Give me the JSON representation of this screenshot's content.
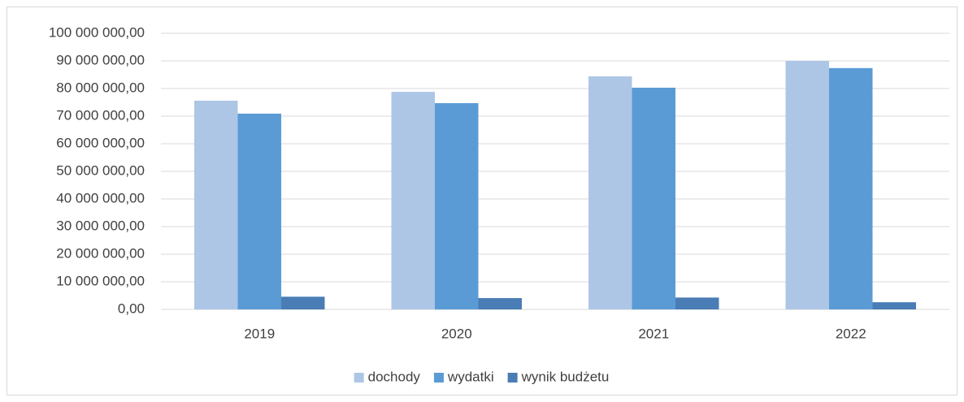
{
  "chart_data": {
    "type": "bar",
    "categories": [
      "2019",
      "2020",
      "2021",
      "2022"
    ],
    "series": [
      {
        "name": "dochody",
        "color": "#adc6e6",
        "values": [
          75600000,
          78800000,
          84400000,
          90000000
        ]
      },
      {
        "name": "wydatki",
        "color": "#5b9bd5",
        "values": [
          70900000,
          74700000,
          80300000,
          87400000
        ]
      },
      {
        "name": "wynik budżetu",
        "color": "#4a7db5",
        "values": [
          4600000,
          4100000,
          4300000,
          2600000
        ]
      }
    ],
    "ylim": [
      0,
      100000000
    ],
    "yticks": [
      {
        "value": 0,
        "label": "0,00"
      },
      {
        "value": 10000000,
        "label": "10 000 000,00"
      },
      {
        "value": 20000000,
        "label": "20 000 000,00"
      },
      {
        "value": 30000000,
        "label": "30 000 000,00"
      },
      {
        "value": 40000000,
        "label": "40 000 000,00"
      },
      {
        "value": 50000000,
        "label": "50 000 000,00"
      },
      {
        "value": 60000000,
        "label": "60 000 000,00"
      },
      {
        "value": 70000000,
        "label": "70 000 000,00"
      },
      {
        "value": 80000000,
        "label": "80 000 000,00"
      },
      {
        "value": 90000000,
        "label": "90 000 000,00"
      },
      {
        "value": 100000000,
        "label": "100 000 000,00"
      }
    ],
    "grid": true,
    "legend": "bottom"
  }
}
